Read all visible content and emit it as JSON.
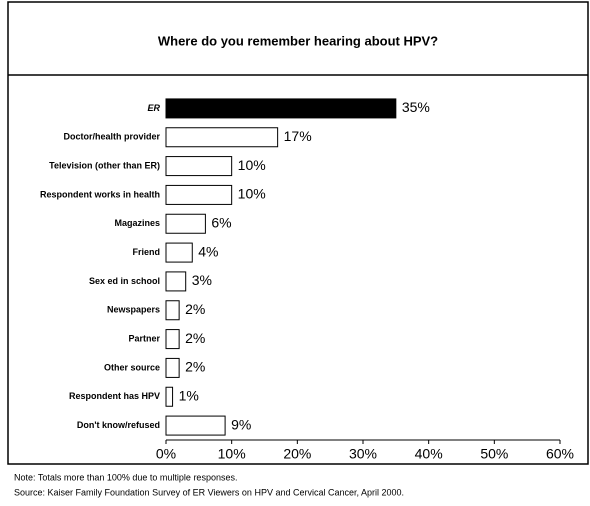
{
  "chart_data": {
    "type": "bar",
    "orientation": "horizontal",
    "title": "Where do you remember hearing about HPV?",
    "categories": [
      "ER",
      "Doctor/health provider",
      "Television (other than ER)",
      "Respondent works in health",
      "Magazines",
      "Friend",
      "Sex ed in school",
      "Newspapers",
      "Partner",
      "Other source",
      "Respondent has HPV",
      "Don't know/refused"
    ],
    "values": [
      35,
      17,
      10,
      10,
      6,
      4,
      3,
      2,
      2,
      2,
      1,
      9
    ],
    "value_labels": [
      "35%",
      "17%",
      "10%",
      "10%",
      "6%",
      "4%",
      "3%",
      "2%",
      "2%",
      "2%",
      "1%",
      "9%"
    ],
    "colors": [
      "#000000",
      "#ffffff",
      "#ffffff",
      "#ffffff",
      "#ffffff",
      "#ffffff",
      "#ffffff",
      "#ffffff",
      "#ffffff",
      "#ffffff",
      "#ffffff",
      "#ffffff"
    ],
    "xlim": [
      0,
      60
    ],
    "xticks": [
      {
        "value": 0,
        "label": "0%"
      },
      {
        "value": 10,
        "label": "10%"
      },
      {
        "value": 20,
        "label": "20%"
      },
      {
        "value": 30,
        "label": "30%"
      },
      {
        "value": 40,
        "label": "40%"
      },
      {
        "value": 50,
        "label": "50%"
      },
      {
        "value": 60,
        "label": "60%"
      }
    ],
    "notes": [
      "Note: Totals more than 100% due to multiple responses.",
      "Source: Kaiser Family Foundation Survey of ER Viewers on HPV and Cervical Cancer, April 2000."
    ]
  }
}
